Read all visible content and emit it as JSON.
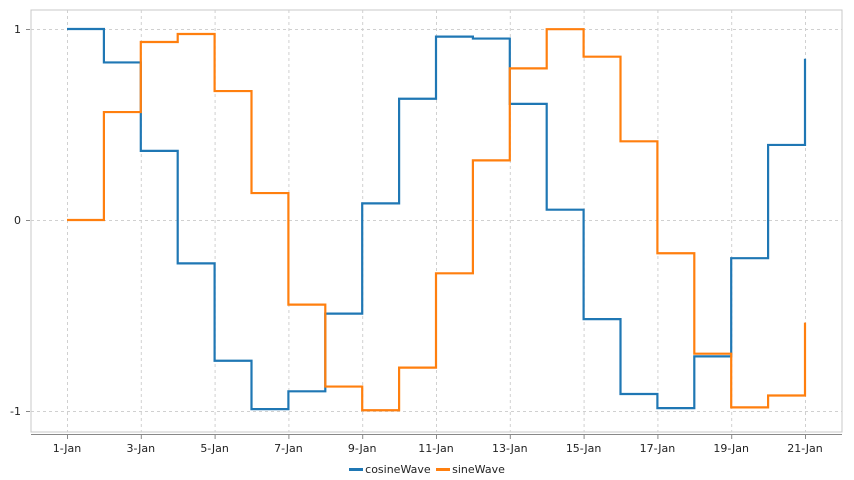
{
  "chart_data": {
    "type": "line",
    "subtype": "step",
    "title": "",
    "xlabel": "",
    "ylabel": "",
    "x": [
      "1-Jan",
      "2-Jan",
      "3-Jan",
      "4-Jan",
      "5-Jan",
      "6-Jan",
      "7-Jan",
      "8-Jan",
      "9-Jan",
      "10-Jan",
      "11-Jan",
      "12-Jan",
      "13-Jan",
      "14-Jan",
      "15-Jan",
      "16-Jan",
      "17-Jan",
      "18-Jan",
      "19-Jan",
      "20-Jan",
      "21-Jan"
    ],
    "x_tick_labels": [
      "1-Jan",
      "3-Jan",
      "5-Jan",
      "7-Jan",
      "9-Jan",
      "11-Jan",
      "13-Jan",
      "15-Jan",
      "17-Jan",
      "19-Jan",
      "21-Jan"
    ],
    "y_tick_labels": [
      "1",
      "0",
      "-1"
    ],
    "y_ticks": [
      1,
      0,
      -1
    ],
    "ylim": [
      -1.11,
      1.1
    ],
    "grid": true,
    "legend_position": "bottom",
    "series": [
      {
        "name": "cosineWave",
        "color": "#1f77b4",
        "values": [
          1.0,
          0.825,
          0.362,
          -0.227,
          -0.737,
          -0.99,
          -0.897,
          -0.49,
          0.087,
          0.635,
          0.96,
          0.95,
          0.608,
          0.054,
          -0.519,
          -0.911,
          -0.985,
          -0.714,
          -0.2,
          0.393,
          0.844
        ]
      },
      {
        "name": "sineWave",
        "color": "#ff7f0e",
        "values": [
          0.0,
          0.565,
          0.932,
          0.974,
          0.675,
          0.141,
          -0.443,
          -0.872,
          -0.996,
          -0.773,
          -0.279,
          0.312,
          0.794,
          0.999,
          0.855,
          0.412,
          -0.174,
          -0.7,
          -0.981,
          -0.919,
          -0.537
        ]
      }
    ]
  },
  "legend": {
    "items": [
      {
        "label": "cosineWave",
        "color": "#1f77b4"
      },
      {
        "label": "sineWave",
        "color": "#ff7f0e"
      }
    ]
  }
}
